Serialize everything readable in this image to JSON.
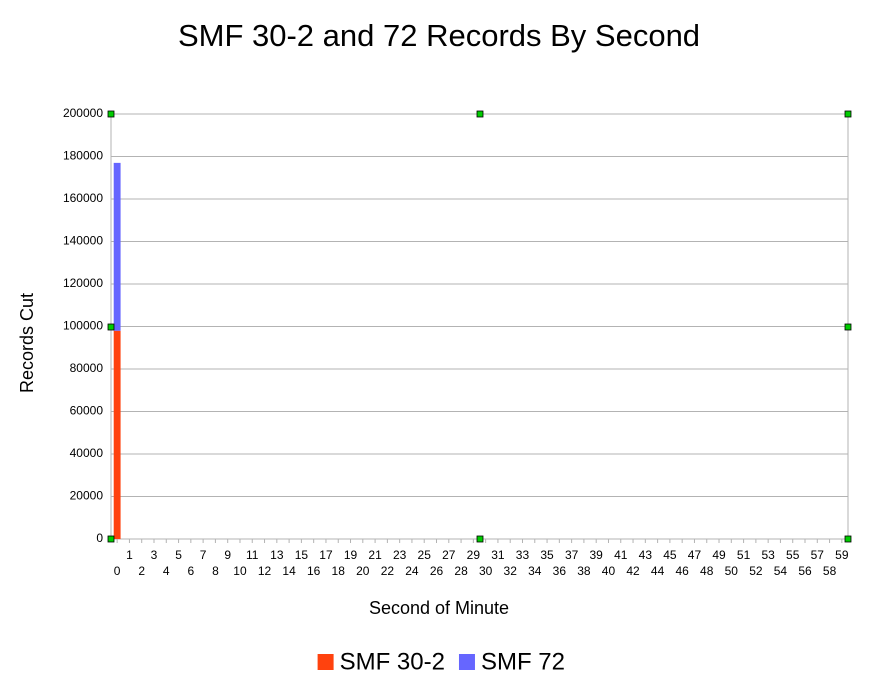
{
  "chart_data": {
    "type": "stacked_bar",
    "title": "SMF 30-2 and 72 Records By Second",
    "x_label": "Second of Minute",
    "y_label": "Records Cut",
    "categories": [
      "0",
      "1",
      "2",
      "3",
      "4",
      "5",
      "6",
      "7",
      "8",
      "9",
      "10",
      "11",
      "12",
      "13",
      "14",
      "15",
      "16",
      "17",
      "18",
      "19",
      "20",
      "21",
      "22",
      "23",
      "24",
      "25",
      "26",
      "27",
      "28",
      "29",
      "30",
      "31",
      "32",
      "33",
      "34",
      "35",
      "36",
      "37",
      "38",
      "39",
      "40",
      "41",
      "42",
      "43",
      "44",
      "45",
      "46",
      "47",
      "48",
      "49",
      "50",
      "51",
      "52",
      "53",
      "54",
      "55",
      "56",
      "57",
      "58",
      "59"
    ],
    "series": [
      {
        "name": "SMF 30-2",
        "color": "#ff420e",
        "values": [
          98000,
          0,
          0,
          0,
          0,
          0,
          0,
          0,
          0,
          0,
          0,
          0,
          0,
          0,
          0,
          0,
          0,
          0,
          0,
          0,
          0,
          0,
          0,
          0,
          0,
          0,
          0,
          0,
          0,
          0,
          0,
          0,
          0,
          0,
          0,
          0,
          0,
          0,
          0,
          0,
          0,
          0,
          0,
          0,
          0,
          0,
          0,
          0,
          0,
          0,
          0,
          0,
          0,
          0,
          0,
          0,
          0,
          0,
          0,
          0
        ]
      },
      {
        "name": "SMF 72",
        "color": "#6666ff",
        "values": [
          79000,
          0,
          0,
          0,
          0,
          0,
          0,
          0,
          0,
          0,
          0,
          0,
          0,
          0,
          0,
          0,
          0,
          0,
          0,
          0,
          0,
          0,
          0,
          0,
          0,
          0,
          0,
          0,
          0,
          0,
          0,
          0,
          0,
          0,
          0,
          0,
          0,
          0,
          0,
          0,
          0,
          0,
          0,
          0,
          0,
          0,
          0,
          0,
          0,
          0,
          0,
          0,
          0,
          0,
          0,
          0,
          0,
          0,
          0,
          0
        ]
      }
    ],
    "ylim": [
      0,
      200000
    ],
    "yticks": [
      0,
      20000,
      40000,
      60000,
      80000,
      100000,
      120000,
      140000,
      160000,
      180000,
      200000
    ],
    "grid": true,
    "legend": "bottom"
  }
}
